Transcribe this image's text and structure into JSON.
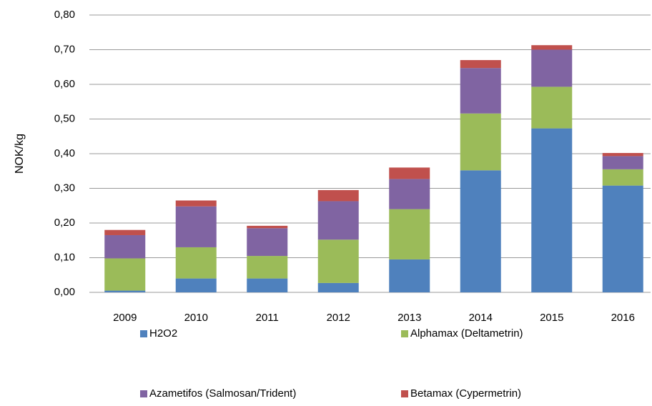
{
  "chart_data": {
    "type": "stacked_bar",
    "y_label": "NOK/kg",
    "categories": [
      "2009",
      "2010",
      "2011",
      "2012",
      "2013",
      "2014",
      "2015",
      "2016"
    ],
    "series": [
      {
        "name": "H2O2",
        "color": "#4f81bd",
        "values": [
          0.005,
          0.04,
          0.04,
          0.027,
          0.095,
          0.352,
          0.473,
          0.308
        ]
      },
      {
        "name": "Alphamax (Deltametrin)",
        "color": "#9bbb59",
        "values": [
          0.093,
          0.09,
          0.065,
          0.125,
          0.145,
          0.164,
          0.12,
          0.047
        ]
      },
      {
        "name": "Azametifos (Salmosan/Trident)",
        "color": "#8064a2",
        "values": [
          0.067,
          0.118,
          0.08,
          0.111,
          0.087,
          0.131,
          0.107,
          0.038
        ]
      },
      {
        "name": "Betamax (Cypermetrin)",
        "color": "#c0504d",
        "values": [
          0.015,
          0.017,
          0.007,
          0.032,
          0.033,
          0.023,
          0.013,
          0.009
        ]
      }
    ],
    "ylim": [
      0,
      0.8
    ],
    "yticks": [
      {
        "value": 0,
        "label": "0,00"
      },
      {
        "value": 0.1,
        "label": "0,10"
      },
      {
        "value": 0.2,
        "label": "0,20"
      },
      {
        "value": 0.3,
        "label": "0,30"
      },
      {
        "value": 0.4,
        "label": "0,40"
      },
      {
        "value": 0.5,
        "label": "0,50"
      },
      {
        "value": 0.6,
        "label": "0,60"
      },
      {
        "value": 0.7,
        "label": "0,70"
      },
      {
        "value": 0.8,
        "label": "0,80"
      }
    ],
    "grid": true
  }
}
